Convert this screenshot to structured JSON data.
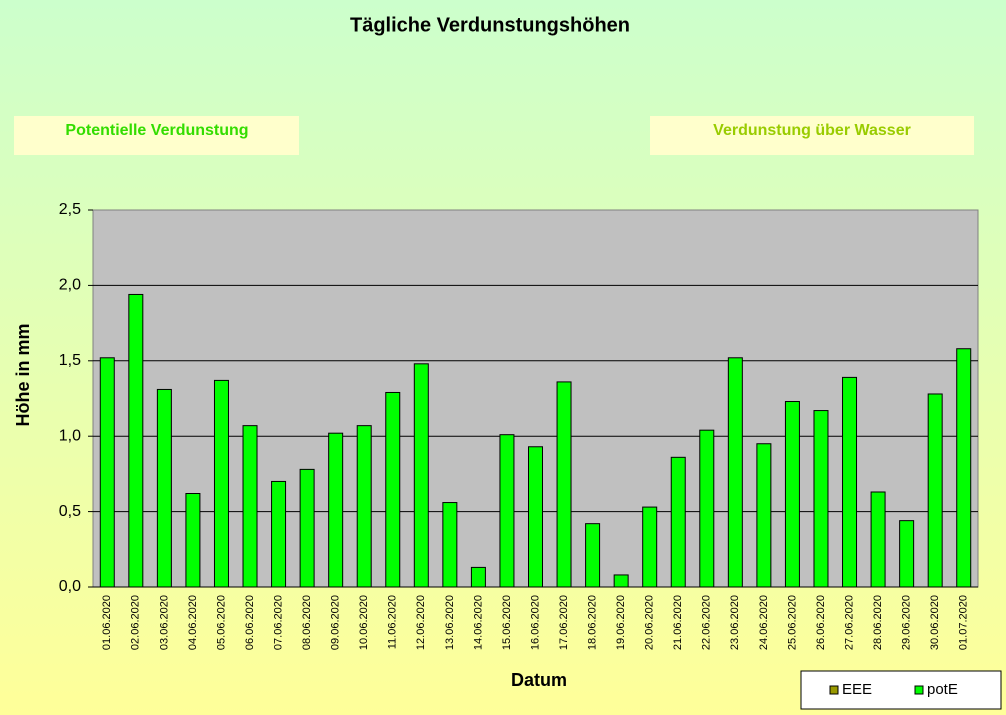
{
  "chart_data": {
    "type": "bar",
    "title": "Tägliche Verdunstungshöhen",
    "annotations": [
      "Potentielle Verdunstung",
      "Verdunstung über Wasser"
    ],
    "x_label": "Datum",
    "y_label": "Höhe in mm",
    "categories": [
      "01.06.2020",
      "02.06.2020",
      "03.06.2020",
      "04.06.2020",
      "05.06.2020",
      "06.06.2020",
      "07.06.2020",
      "08.06.2020",
      "09.06.2020",
      "10.06.2020",
      "11.06.2020",
      "12.06.2020",
      "13.06.2020",
      "14.06.2020",
      "15.06.2020",
      "16.06.2020",
      "17.06.2020",
      "18.06.2020",
      "19.06.2020",
      "20.06.2020",
      "21.06.2020",
      "22.06.2020",
      "23.06.2020",
      "24.06.2020",
      "25.06.2020",
      "26.06.2020",
      "27.06.2020",
      "28.06.2020",
      "29.06.2020",
      "30.06.2020",
      "01.07.2020"
    ],
    "series": [
      {
        "name": "EEE",
        "color": "#999900",
        "values": [
          null,
          null,
          null,
          null,
          null,
          null,
          null,
          null,
          null,
          null,
          null,
          null,
          null,
          null,
          null,
          null,
          null,
          null,
          null,
          null,
          null,
          null,
          null,
          null,
          null,
          null,
          null,
          null,
          null,
          null,
          null
        ]
      },
      {
        "name": "potE",
        "color": "#00ff00",
        "values": [
          1.52,
          1.94,
          1.31,
          0.62,
          1.37,
          1.07,
          0.7,
          0.78,
          1.02,
          1.07,
          1.29,
          1.48,
          0.56,
          0.13,
          1.01,
          0.93,
          1.36,
          0.42,
          0.08,
          0.53,
          0.86,
          1.04,
          1.52,
          0.95,
          1.23,
          1.17,
          1.39,
          0.63,
          0.44,
          1.28,
          1.58
        ]
      }
    ],
    "ylim": [
      0,
      2.5
    ],
    "yticks": [
      {
        "value": 0,
        "label": "0,0"
      },
      {
        "value": 0.5,
        "label": "0,5"
      },
      {
        "value": 1,
        "label": "1,0"
      },
      {
        "value": 1.5,
        "label": "1,5"
      },
      {
        "value": 2,
        "label": "2,0"
      },
      {
        "value": 2.5,
        "label": "2,5"
      }
    ],
    "grid": true,
    "legend": "bottom-right"
  }
}
